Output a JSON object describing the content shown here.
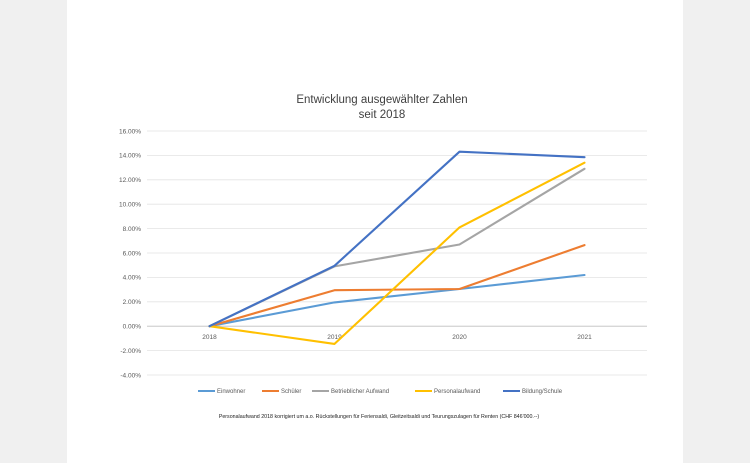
{
  "chart_data": {
    "type": "line",
    "title": "Entwicklung ausgewählter Zahlen",
    "subtitle": "seit 2018",
    "categories": [
      "2018",
      "2019",
      "2020",
      "2021"
    ],
    "ylim": [
      -0.04,
      0.16
    ],
    "y_ticks": [
      "16.00%",
      "14.00%",
      "12.00%",
      "10.00%",
      "8.00%",
      "6.00%",
      "4.00%",
      "2.00%",
      "0.00%",
      "-2.00%",
      "-4.00%"
    ],
    "y_tick_values": [
      0.16,
      0.14,
      0.12,
      0.1,
      0.08,
      0.06,
      0.04,
      0.02,
      0.0,
      -0.02,
      -0.04
    ],
    "grid": true,
    "legend_position": "bottom",
    "series": [
      {
        "name": "Einwohner",
        "color": "#5b9bd5",
        "values": [
          0.0,
          0.0195,
          0.0305,
          0.042
        ]
      },
      {
        "name": "Schüler",
        "color": "#ed7d31",
        "values": [
          0.0,
          0.0295,
          0.0305,
          0.0665
        ]
      },
      {
        "name": "Betrieblicher Aufwand",
        "color": "#a5a5a5",
        "values": [
          0.0,
          0.049,
          0.067,
          0.129
        ]
      },
      {
        "name": "Personalaufwand",
        "color": "#ffc000",
        "values": [
          0.0,
          -0.0145,
          0.081,
          0.134
        ]
      },
      {
        "name": "Bildung/Schule",
        "color": "#4472c4",
        "values": [
          0.0,
          0.0495,
          0.143,
          0.1385
        ]
      }
    ]
  },
  "footnote": "Personalaufwand 2018 korrigiert um a.o. Rückstellungen für Feriensaldi, Gleitzeitsaldi und Teurungszulagen für Renten (CHF 846'000.--)"
}
